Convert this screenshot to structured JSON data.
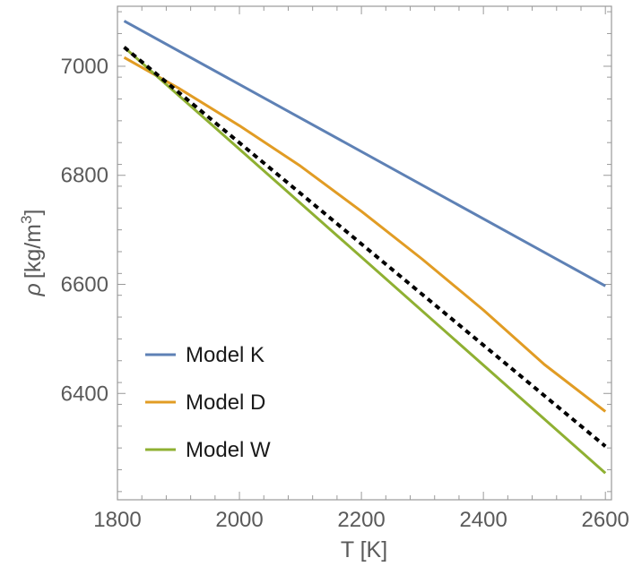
{
  "chart_data": {
    "type": "line",
    "xlabel": "T [K]",
    "ylabel_symbol": "ρ",
    "ylabel_unit": "[kg/m",
    "ylabel_exp": "3",
    "ylabel_close": "]",
    "xlim": [
      1800,
      2610
    ],
    "ylim": [
      6205,
      7110
    ],
    "x_ticks": [
      1800,
      2000,
      2200,
      2400,
      2600
    ],
    "y_ticks": [
      6400,
      6600,
      6800,
      7000
    ],
    "grid": false,
    "legend_position": "bottom-left",
    "series": [
      {
        "name": "Model K",
        "color": "#5E81B5",
        "dash": "solid",
        "x": [
          1811,
          2600
        ],
        "y": [
          7083,
          6597
        ]
      },
      {
        "name": "Model D",
        "color": "#E19C24",
        "dash": "solid",
        "x": [
          1811,
          1900,
          2000,
          2100,
          2200,
          2300,
          2400,
          2500,
          2600
        ],
        "y": [
          7016,
          6960,
          6891,
          6817,
          6734,
          6646,
          6553,
          6453,
          6367
        ]
      },
      {
        "name": "Model W",
        "color": "#8FB032",
        "dash": "solid",
        "x": [
          1811,
          2600
        ],
        "y": [
          7035,
          6254
        ]
      },
      {
        "name": "",
        "color": "#000000",
        "dash": "dashed",
        "x": [
          1811,
          2600
        ],
        "y": [
          7035,
          6303
        ]
      }
    ]
  }
}
